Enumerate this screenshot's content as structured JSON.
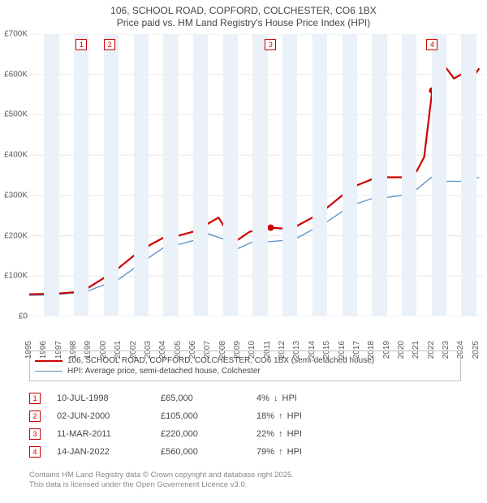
{
  "title_line1": "106, SCHOOL ROAD, COPFORD, COLCHESTER, CO6 1BX",
  "title_line2": "Price paid vs. HM Land Registry's House Price Index (HPI)",
  "chart": {
    "type": "line",
    "background_color": "#ffffff",
    "band_color": "#eaf1f8",
    "grid_color": "#e8e8e8",
    "xlim": [
      1995,
      2025.5
    ],
    "ylim": [
      0,
      700000
    ],
    "ytick_step": 100000,
    "ytick_labels": [
      "£0",
      "£100K",
      "£200K",
      "£300K",
      "£400K",
      "£500K",
      "£600K",
      "£700K"
    ],
    "xticks": [
      1995,
      1996,
      1997,
      1998,
      1999,
      2000,
      2001,
      2002,
      2003,
      2004,
      2005,
      2006,
      2007,
      2008,
      2009,
      2010,
      2011,
      2012,
      2013,
      2014,
      2015,
      2016,
      2017,
      2018,
      2019,
      2020,
      2021,
      2022,
      2023,
      2024,
      2025
    ],
    "pane_bands_every_other_year": true,
    "series": {
      "red": {
        "label": "106, SCHOOL ROAD, COPFORD, COLCHESTER, CO6 1BX (semi-detached house)",
        "color": "#cc0000",
        "width": 2.2,
        "data": [
          [
            1995,
            55000
          ],
          [
            1996,
            56000
          ],
          [
            1997,
            57000
          ],
          [
            1998,
            60000
          ],
          [
            1998.5,
            65000
          ],
          [
            1999,
            72000
          ],
          [
            2000,
            95000
          ],
          [
            2000.4,
            105000
          ],
          [
            2001,
            120000
          ],
          [
            2002,
            150000
          ],
          [
            2003,
            175000
          ],
          [
            2004,
            195000
          ],
          [
            2005,
            200000
          ],
          [
            2006,
            210000
          ],
          [
            2007,
            230000
          ],
          [
            2007.7,
            245000
          ],
          [
            2008.3,
            210000
          ],
          [
            2009,
            190000
          ],
          [
            2009.8,
            210000
          ],
          [
            2010.5,
            215000
          ],
          [
            2011.2,
            220000
          ],
          [
            2012,
            218000
          ],
          [
            2013,
            225000
          ],
          [
            2014,
            245000
          ],
          [
            2015,
            270000
          ],
          [
            2016,
            300000
          ],
          [
            2017,
            325000
          ],
          [
            2018,
            340000
          ],
          [
            2019,
            345000
          ],
          [
            2020,
            345000
          ],
          [
            2020.7,
            350000
          ],
          [
            2021,
            360000
          ],
          [
            2021.5,
            395000
          ],
          [
            2022.04,
            560000
          ],
          [
            2022.5,
            600000
          ],
          [
            2023,
            615000
          ],
          [
            2023.5,
            590000
          ],
          [
            2024,
            600000
          ],
          [
            2024.6,
            585000
          ],
          [
            2025.2,
            615000
          ]
        ]
      },
      "blue": {
        "label": "HPI: Average price, semi-detached house, Colchester",
        "color": "#5a8fc6",
        "width": 1.3,
        "data": [
          [
            1995,
            52000
          ],
          [
            1996,
            53000
          ],
          [
            1997,
            55000
          ],
          [
            1998,
            58000
          ],
          [
            1999,
            64000
          ],
          [
            2000,
            78000
          ],
          [
            2001,
            92000
          ],
          [
            2002,
            118000
          ],
          [
            2003,
            145000
          ],
          [
            2004,
            170000
          ],
          [
            2005,
            178000
          ],
          [
            2006,
            188000
          ],
          [
            2007,
            205000
          ],
          [
            2008,
            192000
          ],
          [
            2009,
            168000
          ],
          [
            2010,
            185000
          ],
          [
            2011,
            185000
          ],
          [
            2012,
            188000
          ],
          [
            2013,
            195000
          ],
          [
            2014,
            215000
          ],
          [
            2015,
            235000
          ],
          [
            2016,
            260000
          ],
          [
            2017,
            280000
          ],
          [
            2018,
            292000
          ],
          [
            2019,
            295000
          ],
          [
            2020,
            300000
          ],
          [
            2021,
            315000
          ],
          [
            2022,
            345000
          ],
          [
            2023,
            335000
          ],
          [
            2024,
            335000
          ],
          [
            2025.2,
            345000
          ]
        ]
      }
    },
    "markers": [
      {
        "n": "1",
        "x": 1998.5,
        "y": 65000
      },
      {
        "n": "2",
        "x": 2000.4,
        "y": 105000
      },
      {
        "n": "3",
        "x": 2011.2,
        "y": 220000
      },
      {
        "n": "4",
        "x": 2022.04,
        "y": 560000
      }
    ]
  },
  "legend": {
    "red_label": "106, SCHOOL ROAD, COPFORD, COLCHESTER, CO6 1BX (semi-detached house)",
    "blue_label": "HPI: Average price, semi-detached house, Colchester"
  },
  "events": [
    {
      "n": "1",
      "date": "10-JUL-1998",
      "price": "£65,000",
      "delta": "4%",
      "dir": "down",
      "suffix": "HPI"
    },
    {
      "n": "2",
      "date": "02-JUN-2000",
      "price": "£105,000",
      "delta": "18%",
      "dir": "up",
      "suffix": "HPI"
    },
    {
      "n": "3",
      "date": "11-MAR-2011",
      "price": "£220,000",
      "delta": "22%",
      "dir": "up",
      "suffix": "HPI"
    },
    {
      "n": "4",
      "date": "14-JAN-2022",
      "price": "£560,000",
      "delta": "79%",
      "dir": "up",
      "suffix": "HPI"
    }
  ],
  "footer_line1": "Contains HM Land Registry data © Crown copyright and database right 2025.",
  "footer_line2": "This data is licensed under the Open Government Licence v3.0.",
  "colors": {
    "red": "#cc0000",
    "blue": "#5a8fc6",
    "text": "#464646",
    "muted": "#888888"
  }
}
